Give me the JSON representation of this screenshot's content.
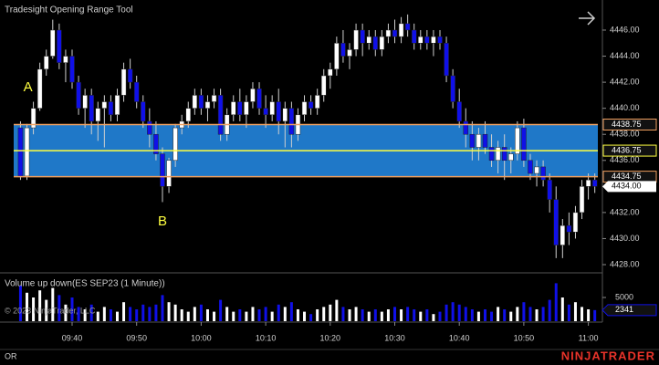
{
  "chart_data": [
    {
      "type": "candlestick",
      "title": "Tradesight Opening Range Tool",
      "categories": [
        null,
        null,
        null,
        null,
        null,
        null,
        null,
        null,
        "09:40",
        null,
        null,
        null,
        null,
        null,
        null,
        null,
        null,
        null,
        "09:50",
        null,
        null,
        null,
        null,
        null,
        null,
        null,
        null,
        null,
        "10:00",
        null,
        null,
        null,
        null,
        null,
        null,
        null,
        null,
        null,
        "10:10",
        null,
        null,
        null,
        null,
        null,
        null,
        null,
        null,
        null,
        "10:20",
        null,
        null,
        null,
        null,
        null,
        null,
        null,
        null,
        null,
        "10:30",
        null,
        null,
        null,
        null,
        null,
        null,
        null,
        null,
        null,
        "10:40",
        null,
        null,
        null,
        null,
        null,
        null,
        null,
        null,
        null,
        "10:50",
        null,
        null,
        null,
        null,
        null,
        null,
        null,
        null,
        null,
        "11:00",
        null
      ],
      "open": [
        4438.5,
        4434.8,
        4438.5,
        4440,
        4443,
        4444,
        4446,
        4443.5,
        4444,
        4442,
        4440,
        4441,
        4439,
        4440,
        4440.5,
        4439.5,
        4441,
        4443,
        4442,
        4440.5,
        4439,
        4438,
        4436.5,
        4434,
        4436,
        4438.5,
        4439,
        4440,
        4441,
        4440,
        4440.5,
        4441,
        4438,
        4439.5,
        4440.5,
        4439.5,
        4440.5,
        4441.5,
        4440,
        4439.5,
        4440.5,
        4439,
        4440,
        4438,
        4439.5,
        4440.5,
        4440,
        4441,
        4442.5,
        4443,
        4445,
        4444,
        4444.5,
        4446,
        4445,
        4445.5,
        4444.5,
        4445.5,
        4446,
        4445.5,
        4446.5,
        4446,
        4445,
        4445.5,
        4445,
        4445.5,
        4445,
        4442.5,
        4440.5,
        4439,
        4438,
        4437,
        4438,
        4437,
        4436,
        4437,
        4436,
        4436.5,
        4438.5,
        4436,
        4435,
        4435.5,
        4434.5,
        4433,
        4429.5,
        4431,
        4430.5,
        4432,
        4434,
        4434.5
      ],
      "high": [
        4439,
        4438.8,
        4440.5,
        4443.5,
        4444.5,
        4446.8,
        4446.5,
        4444.5,
        4444.5,
        4442.5,
        4441.5,
        4441.5,
        4440.5,
        4441,
        4441,
        4441.5,
        4443.5,
        4443.8,
        4442.5,
        4441,
        4440,
        4439,
        4437,
        4436.2,
        4438.8,
        4439.5,
        4440.5,
        4441.5,
        4441.5,
        4441,
        4441.5,
        4441.5,
        4440,
        4441,
        4441.5,
        4441,
        4442,
        4442,
        4441,
        4441,
        4441.5,
        4440.5,
        4440.5,
        4440,
        4441,
        4441,
        4441.5,
        4443,
        4443.5,
        4445.5,
        4446,
        4445,
        4446.5,
        4446.5,
        4446,
        4446,
        4446,
        4446.5,
        4446.8,
        4447,
        4447.2,
        4446.5,
        4446,
        4446,
        4446,
        4446,
        4445.5,
        4443,
        4441.5,
        4440,
        4439,
        4438.5,
        4439,
        4438,
        4437.5,
        4438,
        4437,
        4439,
        4439.2,
        4436.5,
        4436,
        4436,
        4435,
        4434,
        4431.5,
        4432,
        4432.5,
        4434.5,
        4435,
        4435
      ],
      "low": [
        4434.5,
        4434.5,
        4438,
        4439.8,
        4442.5,
        4443.8,
        4443,
        4442,
        4441.5,
        4439.5,
        4438.5,
        4438,
        4437.5,
        4437,
        4439,
        4439,
        4440.5,
        4441.5,
        4440,
        4438.5,
        4437,
        4436,
        4432.8,
        4433.5,
        4435.5,
        4438,
        4438.5,
        4439.5,
        4439.5,
        4439,
        4440,
        4437.5,
        4437.5,
        4439,
        4439,
        4438.5,
        4440,
        4439.5,
        4438.5,
        4439,
        4438,
        4437,
        4437,
        4437.5,
        4439,
        4439.5,
        4439.5,
        4440.5,
        4441.5,
        4442.5,
        4443.5,
        4443,
        4444,
        4444,
        4444.5,
        4444,
        4444,
        4445,
        4445,
        4445,
        4445.5,
        4444.5,
        4444.5,
        4444.5,
        4444,
        4444.5,
        4442,
        4440,
        4438.5,
        4437,
        4436,
        4436,
        4436.5,
        4435.5,
        4435,
        4434.5,
        4435,
        4436,
        4435.5,
        4434.5,
        4434,
        4434,
        4432,
        4428.5,
        4428.5,
        4429.5,
        4430,
        4431.5,
        4433,
        4433.5
      ],
      "close": [
        4434.8,
        4438.5,
        4440,
        4443,
        4444,
        4446,
        4443.5,
        4444,
        4442,
        4440,
        4441,
        4439,
        4440,
        4440.5,
        4439.5,
        4441,
        4443,
        4442,
        4440.5,
        4439,
        4438,
        4436.5,
        4434,
        4436,
        4438.5,
        4439,
        4440,
        4441,
        4440,
        4440.5,
        4441,
        4438,
        4439.5,
        4440.5,
        4439.5,
        4440.5,
        4441.5,
        4440,
        4439.5,
        4440.5,
        4439,
        4440,
        4438,
        4439.5,
        4440.5,
        4440,
        4441,
        4442.5,
        4443,
        4445,
        4444,
        4444.5,
        4446,
        4445,
        4445.5,
        4444.5,
        4445.5,
        4446,
        4445.5,
        4446.5,
        4446,
        4445,
        4445.5,
        4445,
        4445.5,
        4445,
        4442.5,
        4440.5,
        4439,
        4438,
        4437,
        4438,
        4437,
        4436,
        4437,
        4436,
        4436.5,
        4438.5,
        4436,
        4435,
        4435.5,
        4434.5,
        4433,
        4429.5,
        4431,
        4430.5,
        4432,
        4434,
        4434.5,
        4434
      ],
      "up_color": "#ffffff",
      "down_color": "#1010e8",
      "ylim": [
        4427.44,
        4448.31
      ],
      "yticks": [
        {
          "value": 4428,
          "label": "4428.00"
        },
        {
          "value": 4430,
          "label": "4430.00"
        },
        {
          "value": 4432,
          "label": "4432.00"
        },
        {
          "value": 4434,
          "label": "4434.00"
        },
        {
          "value": 4436,
          "label": "4436.00"
        },
        {
          "value": 4438,
          "label": "4438.00"
        },
        {
          "value": 4440,
          "label": "4440.00"
        },
        {
          "value": 4442,
          "label": "4442.00"
        },
        {
          "value": 4444,
          "label": "4444.00"
        },
        {
          "value": 4446,
          "label": "4446.00"
        }
      ],
      "opening_range": {
        "high": 4438.75,
        "mid": 4436.75,
        "low": 4434.75,
        "fill": "#1f78c8",
        "edge_color": "#f0a060",
        "mid_color": "#ffff40"
      },
      "last_price": {
        "value": 4434,
        "label": "4434.00"
      },
      "annotations": [
        "A",
        "B"
      ]
    },
    {
      "type": "bar",
      "title": "Volume up down(ES SEP23 (1 Minute))",
      "values": [
        7500,
        6000,
        5000,
        6500,
        4500,
        7000,
        5500,
        3500,
        5000,
        3000,
        2500,
        3500,
        2000,
        3000,
        2500,
        2000,
        4000,
        3000,
        2500,
        3500,
        3000,
        3500,
        5500,
        4000,
        3500,
        2500,
        2000,
        3000,
        3500,
        2500,
        2000,
        4500,
        3000,
        2000,
        2500,
        2000,
        3000,
        2500,
        3000,
        2000,
        3500,
        3000,
        4000,
        2500,
        2000,
        1500,
        2500,
        3000,
        3500,
        4500,
        3000,
        2500,
        3000,
        2500,
        2000,
        2500,
        2000,
        2500,
        3000,
        2500,
        3000,
        2500,
        2000,
        2500,
        1500,
        2000,
        3500,
        4000,
        3500,
        3000,
        2500,
        2000,
        2500,
        2000,
        3000,
        2500,
        2000,
        3000,
        4000,
        3000,
        2500,
        3000,
        4500,
        8000,
        5000,
        3500,
        4000,
        3000,
        2500,
        2341
      ],
      "ylim": [
        0,
        10000
      ],
      "yticks": [
        5000
      ]
    }
  ],
  "footer": {
    "copyright": "© 2023 NinjaTrader, LLC",
    "tag": "OR",
    "logo": "NINJATRADER"
  }
}
